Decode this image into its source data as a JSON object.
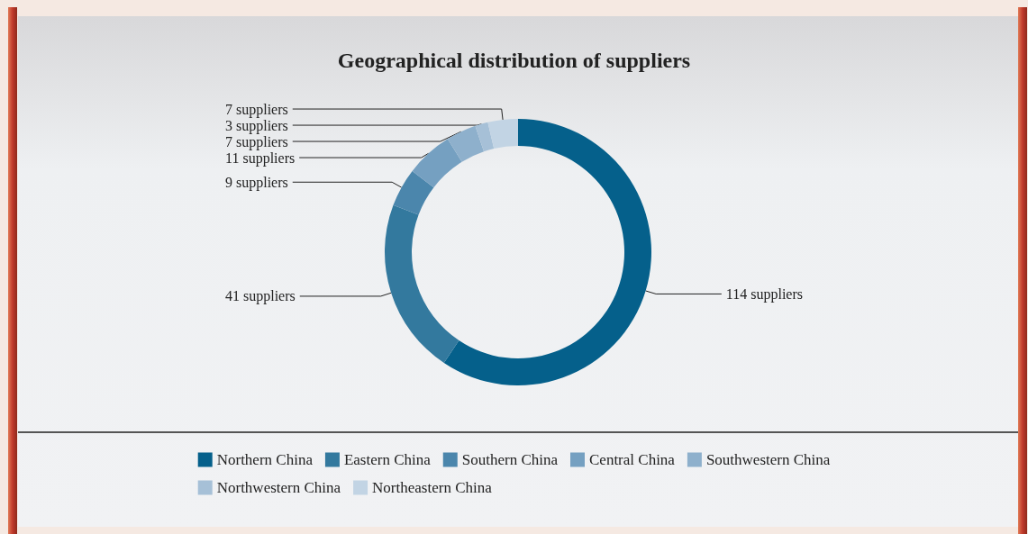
{
  "chart_data": {
    "type": "donut",
    "title": "Geographical distribution of suppliers",
    "categories": [
      "Northern China",
      "Eastern China",
      "Southern China",
      "Central China",
      "Southwestern China",
      "Northwestern China",
      "Northeastern China"
    ],
    "values": [
      114,
      41,
      9,
      11,
      7,
      3,
      7
    ],
    "value_labels": [
      "114 suppliers",
      "41 suppliers",
      "9 suppliers",
      "11 suppliers",
      "7 suppliers",
      "3 suppliers",
      "7 suppliers"
    ],
    "colors": [
      "#05608b",
      "#33799e",
      "#4b86ac",
      "#75a0c1",
      "#8eb0cc",
      "#a6c0d7",
      "#c2d4e4"
    ],
    "legend": "bottom"
  }
}
